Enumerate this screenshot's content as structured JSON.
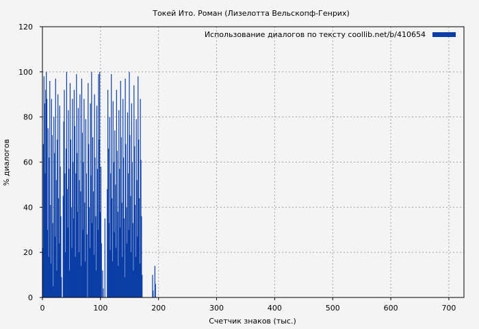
{
  "chart_data": {
    "type": "bar",
    "title": "Токей Ито. Роман (Лизелотта Вельскопф-Генрих)",
    "xlabel": "Счетчик знаков (тыс.)",
    "ylabel": "% диалогов",
    "xlim": [
      0,
      726
    ],
    "ylim": [
      0,
      120
    ],
    "xticks": [
      0,
      100,
      200,
      300,
      400,
      500,
      600,
      700
    ],
    "yticks": [
      0,
      20,
      40,
      60,
      80,
      100,
      120
    ],
    "grid": true,
    "legend_position": "top-right",
    "series": [
      {
        "name": "Использование диалогов по тексту  coollib.net/b/410654",
        "color": "#0a3ea6",
        "bin_width": 1,
        "x_start": 0,
        "values": [
          22,
          68,
          98,
          86,
          55,
          92,
          100,
          88,
          30,
          75,
          18,
          62,
          96,
          41,
          15,
          88,
          72,
          33,
          5,
          80,
          64,
          27,
          97,
          52,
          12,
          70,
          90,
          44,
          24,
          85,
          58,
          36,
          9,
          0,
          0,
          45,
          78,
          92,
          55,
          20,
          66,
          100,
          48,
          31,
          83,
          57,
          12,
          95,
          70,
          40,
          22,
          88,
          60,
          35,
          92,
          76,
          18,
          55,
          99,
          64,
          38,
          84,
          20,
          52,
          90,
          47,
          14,
          97,
          73,
          30,
          60,
          88,
          42,
          16,
          79,
          55,
          28,
          0,
          95,
          68,
          40,
          22,
          86,
          54,
          100,
          33,
          71,
          47,
          19,
          90,
          62,
          36,
          12,
          85,
          57,
          30,
          99,
          70,
          100,
          38,
          58,
          24,
          0,
          12,
          4,
          0,
          0,
          35,
          0,
          0,
          0,
          48,
          92,
          66,
          33,
          80,
          21,
          55,
          99,
          44,
          16,
          87,
          60,
          29,
          74,
          50,
          22,
          92,
          65,
          38,
          14,
          83,
          57,
          31,
          96,
          71,
          42,
          18,
          88,
          62,
          35,
          9,
          97,
          68,
          40,
          24,
          82,
          55,
          30,
          100,
          72,
          45,
          20,
          86,
          60,
          33,
          12,
          94,
          67,
          41,
          18,
          79,
          52,
          27,
          98,
          70,
          44,
          15,
          88,
          61,
          36,
          10,
          0,
          0,
          0,
          0,
          0,
          0,
          0,
          0,
          0,
          0,
          0,
          0,
          0,
          0,
          0,
          0,
          0,
          10,
          3,
          0,
          0,
          14,
          6,
          0,
          0,
          0,
          0,
          0,
          0,
          0,
          0,
          0,
          0,
          0,
          0,
          0,
          0,
          0,
          0,
          0,
          0,
          0,
          0,
          0,
          0,
          0,
          0,
          0,
          0,
          0,
          0,
          0,
          0,
          0,
          0,
          0,
          0,
          0,
          0,
          0,
          0,
          0,
          0,
          0,
          0,
          0,
          0,
          0,
          0,
          0,
          0,
          0,
          0,
          0,
          0,
          0,
          0,
          0,
          0,
          0,
          0,
          0,
          0,
          0,
          0,
          0,
          0,
          0,
          0,
          0,
          0,
          0,
          0,
          0,
          0,
          0,
          0,
          0,
          0,
          0,
          0,
          0,
          0,
          0,
          0,
          0,
          0,
          0,
          0,
          0,
          0,
          0,
          0,
          0,
          0,
          0,
          0,
          0,
          0,
          0,
          0,
          0,
          0,
          0,
          0,
          0,
          0,
          0,
          0,
          0,
          0,
          0,
          0,
          0,
          0,
          0,
          0,
          0,
          0,
          0,
          0,
          0,
          0,
          0,
          0,
          0,
          0,
          0,
          0,
          0,
          0,
          0,
          0,
          0,
          0,
          0,
          0,
          0,
          0,
          0,
          0,
          0,
          0,
          0,
          0,
          0,
          0,
          0,
          0,
          0,
          0,
          0,
          0,
          0,
          0,
          0,
          0,
          0,
          0,
          0,
          0,
          0,
          0,
          0,
          0,
          0,
          0,
          0,
          0,
          0,
          0,
          0,
          0,
          0,
          0,
          0,
          0,
          0,
          0,
          0,
          0,
          0,
          0,
          0,
          0,
          0,
          0,
          0,
          0,
          0,
          0,
          0,
          0,
          0,
          0,
          0,
          0,
          0,
          0,
          0,
          0,
          0,
          0,
          0,
          0,
          0,
          0,
          0,
          0,
          0,
          0,
          0,
          0,
          0,
          0,
          0,
          0,
          0,
          0,
          0,
          0,
          0,
          0,
          0,
          0,
          0,
          0,
          0,
          0,
          0,
          0,
          0,
          0,
          0,
          0,
          0,
          0,
          0,
          0,
          0,
          0,
          0,
          0,
          0,
          0,
          0,
          0,
          0,
          0,
          0,
          0,
          0,
          0,
          0,
          0,
          0,
          0,
          0,
          0,
          0,
          0,
          0,
          0,
          0,
          0,
          0,
          0,
          0,
          0,
          0,
          0,
          0,
          0,
          0,
          0,
          0,
          0,
          0,
          0,
          0,
          0,
          0,
          0,
          0,
          0,
          0,
          0,
          0,
          0,
          0,
          0,
          0,
          0,
          0,
          0,
          0,
          0,
          0,
          0,
          0,
          0,
          0,
          0,
          0,
          0,
          0,
          0,
          0,
          0,
          0,
          0,
          0,
          0,
          0,
          0,
          0,
          0,
          0,
          0,
          0,
          0,
          0,
          0,
          0,
          0,
          0,
          0,
          0,
          0,
          0,
          0,
          0,
          0,
          0,
          0,
          0,
          0,
          0,
          0,
          0,
          0,
          0,
          0,
          0,
          0,
          0,
          0,
          0,
          0,
          0,
          0,
          0,
          0,
          0,
          0,
          0,
          0,
          0,
          0,
          0,
          0,
          0,
          0,
          0,
          0,
          0,
          0,
          0,
          0,
          0,
          0,
          0,
          0,
          0,
          0,
          0,
          0,
          0,
          0,
          0,
          0,
          0,
          0,
          0,
          0,
          0,
          0,
          0,
          0,
          0,
          0,
          0,
          0,
          0,
          0,
          0,
          0,
          0,
          0,
          0,
          0,
          0,
          0,
          0,
          0,
          0,
          0,
          0,
          0,
          0,
          0,
          0,
          0,
          0,
          0,
          0,
          0,
          0,
          0,
          0,
          0,
          0,
          0,
          0,
          0,
          0,
          0,
          0,
          0,
          0,
          0,
          0,
          0,
          0,
          0,
          0,
          0,
          0,
          0,
          0,
          0,
          0,
          0,
          0,
          0,
          0,
          0,
          0,
          0,
          0,
          0,
          0,
          0,
          0,
          0,
          0,
          0,
          0,
          0,
          0,
          0,
          0,
          0,
          0,
          0,
          0,
          0,
          0,
          0,
          0,
          0,
          0,
          0,
          0,
          0,
          0,
          0,
          0,
          0,
          0,
          0,
          0,
          0,
          0,
          0,
          0,
          0,
          0,
          0,
          0,
          0,
          0,
          0,
          0,
          0,
          0,
          0,
          0,
          0,
          0,
          0,
          0,
          0,
          0,
          0,
          0,
          0,
          0,
          0,
          0,
          0,
          0,
          0,
          0,
          0,
          0,
          0,
          0,
          0,
          0,
          0,
          0,
          0,
          0,
          0,
          0,
          0,
          0,
          0,
          0,
          0,
          0,
          0,
          0,
          0,
          0,
          0,
          0,
          0,
          0,
          0,
          0,
          0,
          0,
          0,
          0,
          0,
          0,
          0,
          0,
          0,
          0,
          0,
          0,
          0,
          0,
          0,
          0,
          0,
          0,
          0,
          0,
          0,
          0,
          0,
          0,
          0,
          0,
          0,
          0,
          0,
          0,
          0,
          0,
          0,
          0,
          0,
          0,
          0,
          0,
          0,
          0,
          0,
          0,
          0,
          0,
          0,
          0,
          0,
          0,
          0,
          0,
          0,
          0,
          0,
          0,
          0,
          0,
          0,
          0,
          0,
          0,
          0,
          0,
          0,
          0,
          0,
          0,
          0,
          0,
          0,
          0,
          0,
          0,
          0,
          0,
          0,
          0,
          0,
          0,
          0,
          0,
          0,
          0,
          0,
          0,
          0,
          0,
          0,
          0,
          0,
          0,
          0,
          0,
          0,
          0,
          0,
          0,
          0,
          0,
          0,
          0,
          0,
          0,
          0,
          0,
          0,
          0,
          0,
          0,
          0,
          0,
          0,
          0
        ]
      }
    ]
  }
}
